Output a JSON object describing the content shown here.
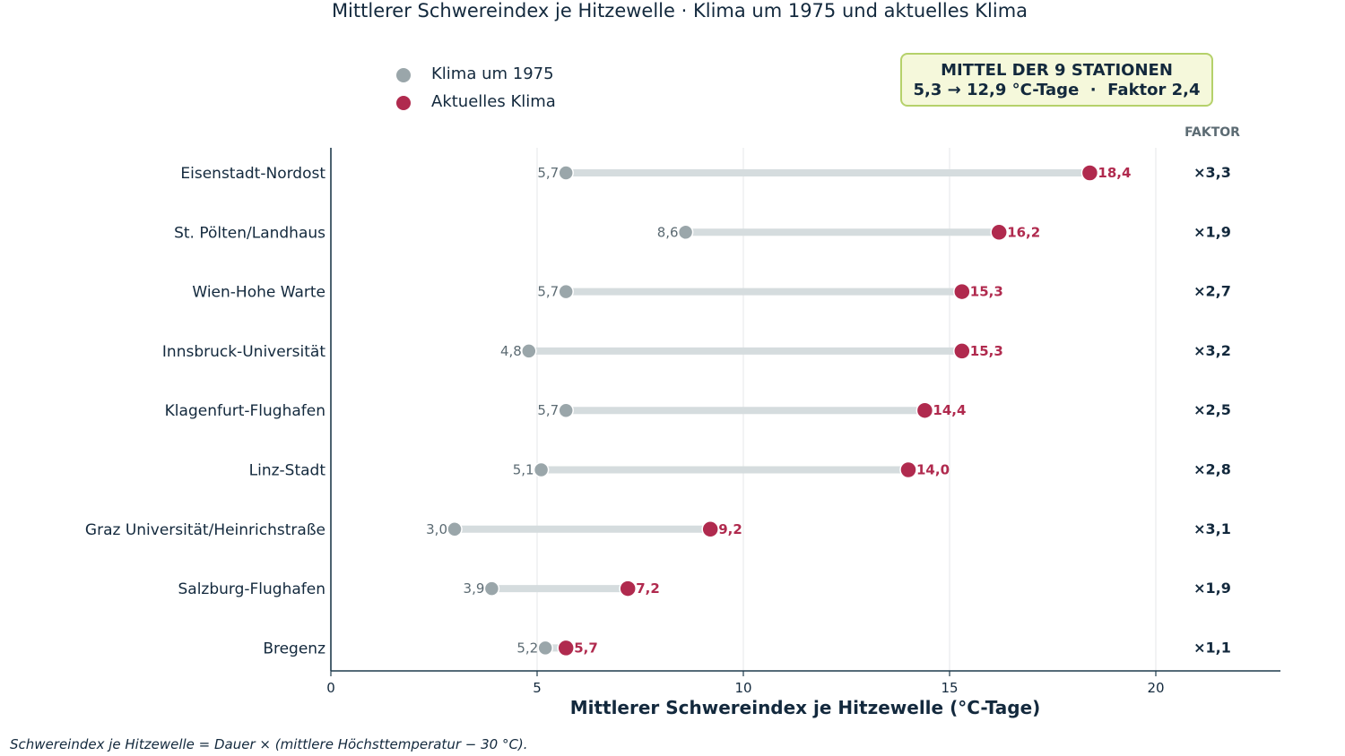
{
  "chart_data": {
    "type": "dumbbell",
    "title": "Mittlerer Schwereindex je Hitzewelle · Klima um 1975 und aktuelles Klima",
    "xlabel": "Mittlerer Schwereindex je Hitzewelle (°C-Tage)",
    "ylabel": "",
    "xlim": [
      0,
      23
    ],
    "xticks": [
      0,
      5,
      10,
      15,
      20
    ],
    "grid": "vertical",
    "legend_position": "top-left",
    "factor_header": "FAKTOR",
    "series": [
      {
        "name": "Klima um 1975",
        "color": "#9aa6aa"
      },
      {
        "name": "Aktuelles Klima",
        "color": "#b02a4e"
      }
    ],
    "categories": [
      "Eisenstadt-Nordost",
      "St. Pölten/Landhaus",
      "Wien-Hohe Warte",
      "Innsbruck-Universität",
      "Klagenfurt-Flughafen",
      "Linz-Stadt",
      "Graz Universität/Heinrichstraße",
      "Salzburg-Flughafen",
      "Bregenz"
    ],
    "rows": [
      {
        "station": "Eisenstadt-Nordost",
        "v1975": 5.7,
        "v1975_label": "5,7",
        "vnow": 18.4,
        "vnow_label": "18,4",
        "factor": "×3,3"
      },
      {
        "station": "St. Pölten/Landhaus",
        "v1975": 8.6,
        "v1975_label": "8,6",
        "vnow": 16.2,
        "vnow_label": "16,2",
        "factor": "×1,9"
      },
      {
        "station": "Wien-Hohe Warte",
        "v1975": 5.7,
        "v1975_label": "5,7",
        "vnow": 15.3,
        "vnow_label": "15,3",
        "factor": "×2,7"
      },
      {
        "station": "Innsbruck-Universität",
        "v1975": 4.8,
        "v1975_label": "4,8",
        "vnow": 15.3,
        "vnow_label": "15,3",
        "factor": "×3,2"
      },
      {
        "station": "Klagenfurt-Flughafen",
        "v1975": 5.7,
        "v1975_label": "5,7",
        "vnow": 14.4,
        "vnow_label": "14,4",
        "factor": "×2,5"
      },
      {
        "station": "Linz-Stadt",
        "v1975": 5.1,
        "v1975_label": "5,1",
        "vnow": 14.0,
        "vnow_label": "14,0",
        "factor": "×2,8"
      },
      {
        "station": "Graz Universität/Heinrichstraße",
        "v1975": 3.0,
        "v1975_label": "3,0",
        "vnow": 9.2,
        "vnow_label": "9,2",
        "factor": "×3,1"
      },
      {
        "station": "Salzburg-Flughafen",
        "v1975": 3.9,
        "v1975_label": "3,9",
        "vnow": 7.2,
        "vnow_label": "7,2",
        "factor": "×1,9"
      },
      {
        "station": "Bregenz",
        "v1975": 5.2,
        "v1975_label": "5,2",
        "vnow": 5.7,
        "vnow_label": "5,7",
        "factor": "×1,1"
      }
    ],
    "summary": {
      "line1": "MITTEL DER 9 STATIONEN",
      "line2": "5,3 → 12,9 °C-Tage  ·  Faktor 2,4"
    },
    "footnote": "Schwereindex je Hitzewelle = Dauer × (mittlere Höchsttemperatur − 30 °C)."
  }
}
